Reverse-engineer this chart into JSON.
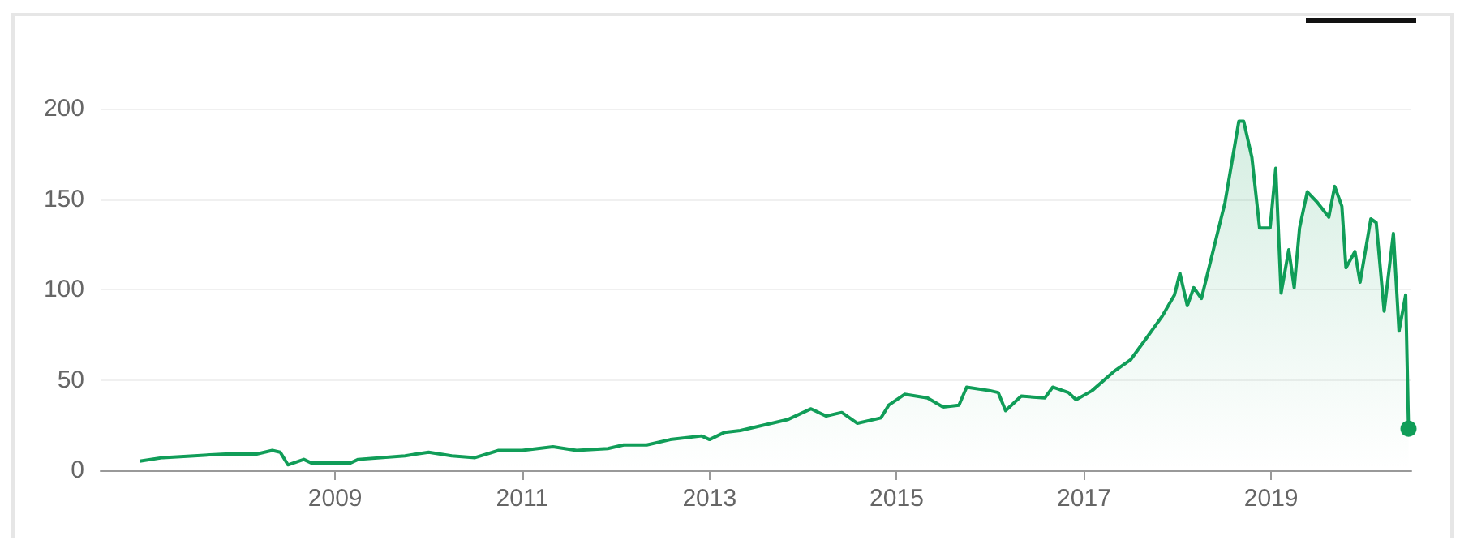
{
  "chart_data": {
    "type": "area",
    "x": [
      "2006-12",
      "2007-03",
      "2007-07",
      "2007-11",
      "2008-03",
      "2008-05",
      "2008-06",
      "2008-07",
      "2008-09",
      "2008-10",
      "2009-03",
      "2009-04",
      "2009-10",
      "2010-01",
      "2010-04",
      "2010-07",
      "2010-10",
      "2011-01",
      "2011-05",
      "2011-08",
      "2011-12",
      "2012-02",
      "2012-05",
      "2012-08",
      "2012-12",
      "2013-01",
      "2013-03",
      "2013-05",
      "2013-11",
      "2014-02",
      "2014-04",
      "2014-06",
      "2014-08",
      "2014-11",
      "2014-12",
      "2015-02",
      "2015-05",
      "2015-07",
      "2015-09",
      "2015-10",
      "2016-01",
      "2016-02",
      "2016-03",
      "2016-05",
      "2016-08",
      "2016-09",
      "2016-11",
      "2016-12",
      "2017-02",
      "2017-05",
      "2017-07",
      "2017-09",
      "2017-11",
      "2017-12-20",
      "2018-01-10",
      "2018-02-08",
      "2018-03-05",
      "2018-04-04",
      "2018-05-26",
      "2018-07-05",
      "2018-08-28",
      "2018-09-16",
      "2018-10-18",
      "2018-11-17",
      "2018-12-28",
      "2019-01-19",
      "2019-02-09",
      "2019-03-11",
      "2019-04-01",
      "2019-04-22",
      "2019-05-22",
      "2019-07-01",
      "2019-08-14",
      "2019-09-06",
      "2019-10-04",
      "2019-10-20",
      "2019-11-24",
      "2019-12-14",
      "2020-01-25",
      "2020-02-15",
      "2020-03-17",
      "2020-04-22",
      "2020-05-14",
      "2020-06-09",
      "2020-06-20"
    ],
    "series": [
      {
        "color": "#109d58",
        "values": [
          5,
          7,
          8,
          9,
          9,
          11,
          10,
          3,
          6,
          4,
          4,
          6,
          8,
          10,
          8,
          7,
          11,
          11,
          13,
          11,
          12,
          14,
          14,
          17,
          19,
          17,
          21,
          22,
          28,
          34,
          30,
          32,
          26,
          29,
          36,
          42,
          40,
          35,
          36,
          46,
          44,
          43,
          33,
          41,
          40,
          46,
          43,
          39,
          44,
          55,
          61,
          73,
          85,
          97,
          109,
          91,
          101,
          95,
          125,
          148,
          193,
          193,
          173,
          134,
          134,
          167,
          98,
          122,
          101,
          134,
          154,
          148,
          140,
          157,
          146,
          112,
          121,
          104,
          139,
          137,
          88,
          131,
          77,
          97,
          23
        ]
      }
    ],
    "xlim": [
      "2006-07",
      "2020-07"
    ],
    "xticks": [
      "2009",
      "2011",
      "2013",
      "2015",
      "2017",
      "2019"
    ],
    "ylim": [
      0,
      200
    ],
    "yticks": [
      0,
      50,
      100,
      150,
      200
    ],
    "grid": "y"
  }
}
